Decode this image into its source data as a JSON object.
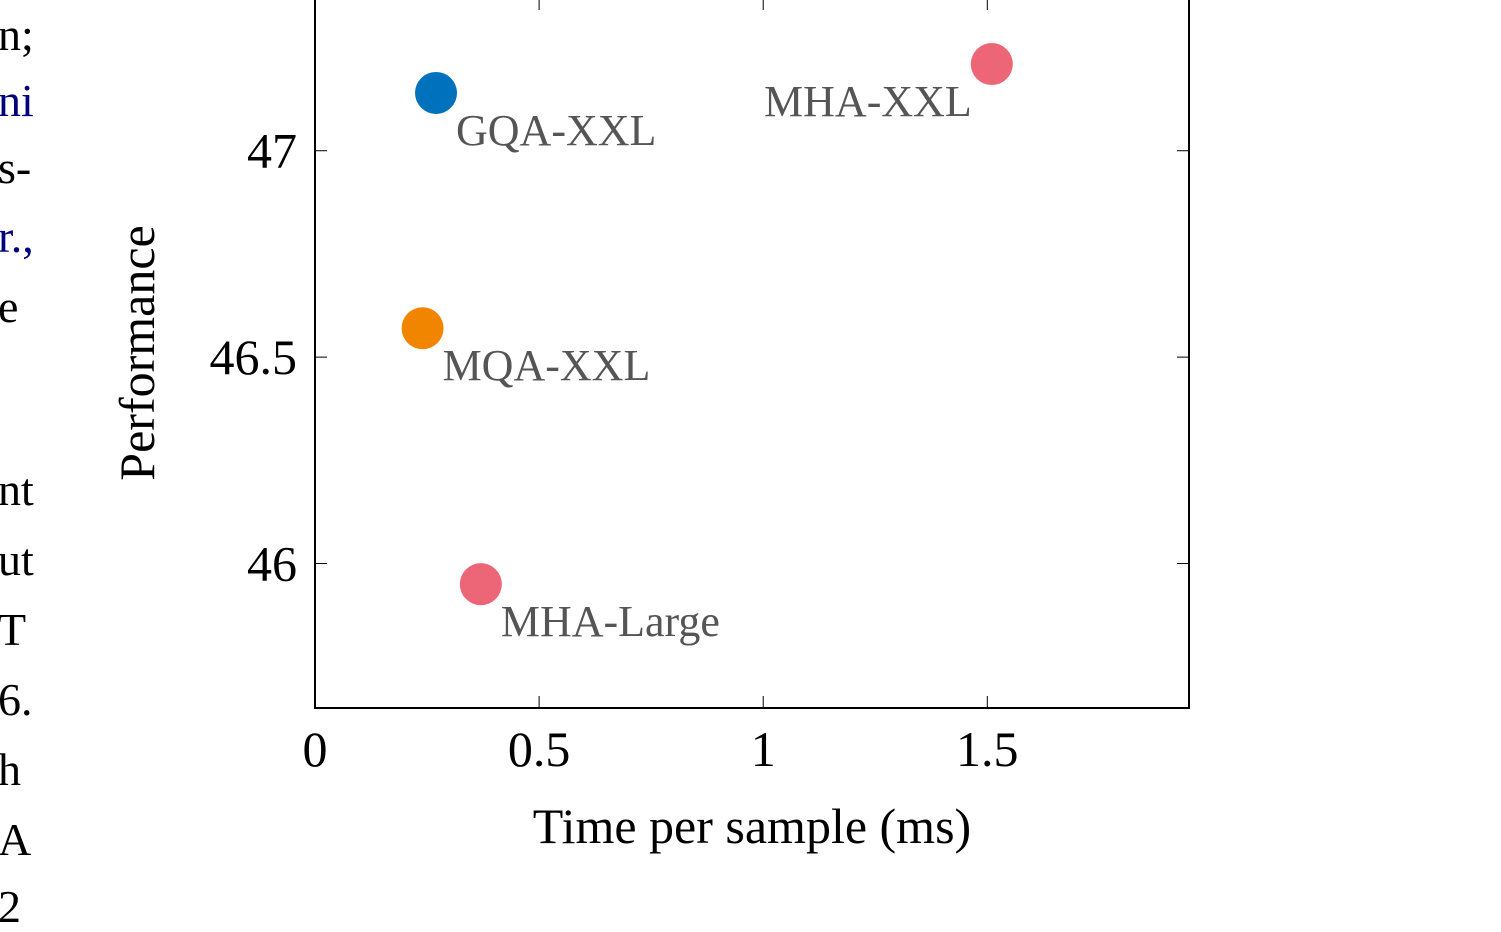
{
  "page_text_fragments": [
    "n;",
    "ni",
    "s-",
    "r.,",
    "e",
    "nt",
    "ut",
    "T",
    "6.",
    "h",
    "A",
    "2"
  ],
  "chart_data": {
    "type": "scatter",
    "xlabel": "Time per sample (ms)",
    "ylabel": "Performance",
    "xlim": [
      0,
      1.95
    ],
    "ylim": [
      45.65,
      47.37
    ],
    "x_ticks": [
      "0",
      "0.5",
      "1",
      "1.5"
    ],
    "x_tick_values": [
      0,
      0.5,
      1,
      1.5
    ],
    "y_ticks": [
      "46",
      "46.5",
      "47"
    ],
    "y_tick_values": [
      46,
      46.5,
      47
    ],
    "grid": false,
    "points": [
      {
        "label": "GQA-XXL",
        "x": 0.27,
        "y": 47.14,
        "color": "#0072bd",
        "label_pos": "below-right"
      },
      {
        "label": "MHA-XXL",
        "x": 1.51,
        "y": 47.21,
        "color": "#ec6677",
        "label_pos": "below-left"
      },
      {
        "label": "MQA-XXL",
        "x": 0.24,
        "y": 46.57,
        "color": "#f28500",
        "label_pos": "below-right"
      },
      {
        "label": "MHA-Large",
        "x": 0.37,
        "y": 45.95,
        "color": "#ec6677",
        "label_pos": "below-right"
      }
    ]
  }
}
